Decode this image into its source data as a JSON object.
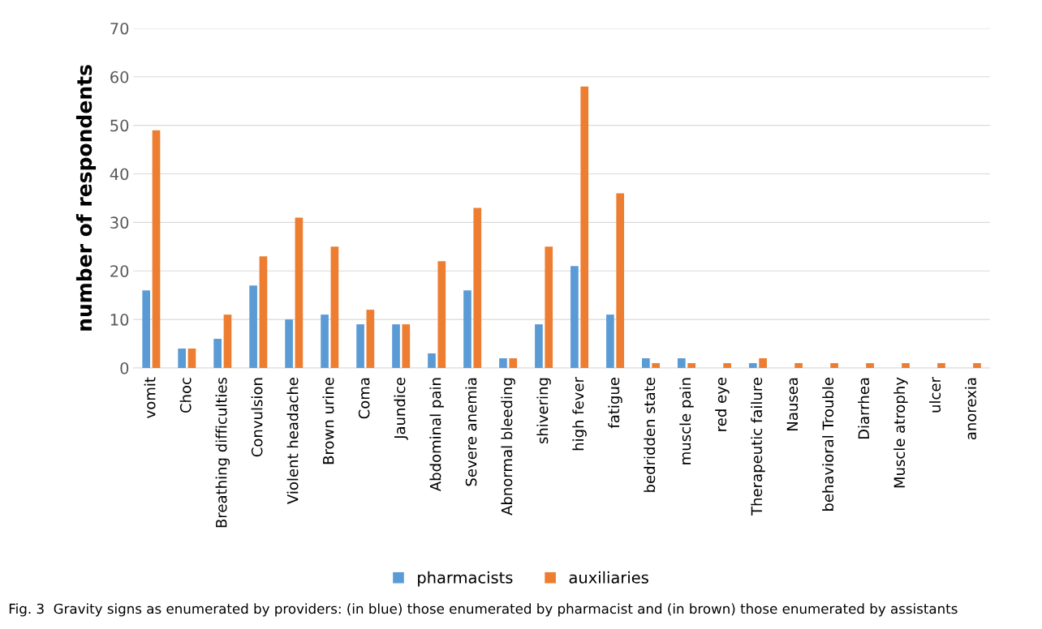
{
  "chart_data": {
    "type": "bar",
    "ylabel": "number of respondents",
    "categories": [
      "vomit",
      "Choc",
      "Breathing difficulties",
      "Convulsion",
      "Violent headache",
      "Brown urine",
      "Coma",
      "Jaundice",
      "Abdominal pain",
      "Severe anemia",
      "Abnormal bleeding",
      "shivering",
      "high fever",
      "fatigue",
      "bedridden state",
      "muscle pain",
      "red eye",
      "Therapeutic failure",
      "Nausea",
      "behavioral Trouble",
      "Diarrhea",
      "Muscle atrophy",
      "ulcer",
      "anorexia"
    ],
    "series": [
      {
        "name": "pharmacists",
        "color": "#5b9bd5",
        "values": [
          16,
          4,
          6,
          17,
          10,
          11,
          9,
          9,
          3,
          16,
          2,
          9,
          21,
          11,
          2,
          2,
          0,
          1,
          0,
          0,
          0,
          0,
          0,
          0
        ]
      },
      {
        "name": "auxiliaries",
        "color": "#ed7d31",
        "values": [
          49,
          4,
          11,
          23,
          31,
          25,
          12,
          9,
          22,
          33,
          2,
          25,
          58,
          36,
          1,
          1,
          1,
          2,
          1,
          1,
          1,
          1,
          1,
          1
        ]
      }
    ],
    "ylim": [
      0,
      70
    ],
    "yticks": [
      0,
      10,
      20,
      30,
      40,
      50,
      60,
      70
    ],
    "grid": "y",
    "legend": "bottom",
    "annotations": [
      "Fig. 3  Gravity signs as enumerated by providers: (in blue) those enumerated by pharmacist and (in brown) those enumerated by assistants"
    ]
  }
}
